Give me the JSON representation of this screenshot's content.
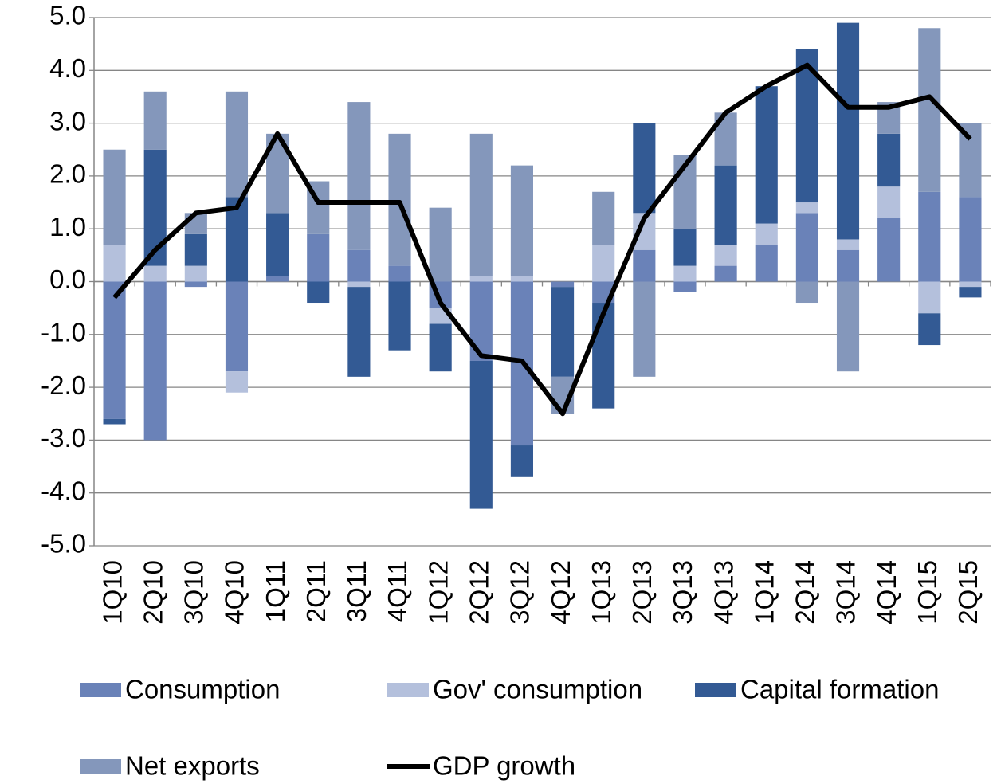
{
  "chart_data": {
    "type": "bar",
    "stacked": true,
    "categories": [
      "1Q10",
      "2Q10",
      "3Q10",
      "4Q10",
      "1Q11",
      "2Q11",
      "3Q11",
      "4Q11",
      "1Q12",
      "2Q12",
      "3Q12",
      "4Q12",
      "1Q13",
      "2Q13",
      "3Q13",
      "4Q13",
      "1Q14",
      "2Q14",
      "3Q14",
      "4Q14",
      "1Q15",
      "2Q15"
    ],
    "series": [
      {
        "name": "Consumption",
        "color": "#6a82b8",
        "values": [
          -2.6,
          -3.0,
          -0.1,
          -1.7,
          0.1,
          0.9,
          0.6,
          0.3,
          -0.5,
          -1.5,
          -3.1,
          -0.1,
          -0.4,
          0.6,
          -0.2,
          0.3,
          0.7,
          1.3,
          0.6,
          1.2,
          1.7,
          1.6
        ]
      },
      {
        "name": "Gov' consumption",
        "color": "#b4c0dc",
        "values": [
          0.7,
          0.3,
          0.3,
          -0.4,
          0,
          0,
          -0.1,
          0,
          -0.3,
          0.1,
          0.1,
          0,
          0.7,
          0.7,
          0.3,
          0.4,
          0.4,
          0.2,
          0.2,
          0.6,
          -0.6,
          -0.1
        ]
      },
      {
        "name": "Capital formation",
        "color": "#335a94",
        "values": [
          -0.1,
          2.2,
          0.6,
          1.6,
          1.2,
          -0.4,
          -1.7,
          -1.3,
          -0.9,
          -2.8,
          -0.6,
          -1.7,
          -2.0,
          1.7,
          0.7,
          1.5,
          2.6,
          2.9,
          4.1,
          1.0,
          -0.6,
          -0.2
        ]
      },
      {
        "name": "Net exports",
        "color": "#8497bb",
        "values": [
          1.8,
          1.1,
          0.4,
          2.0,
          1.5,
          1.0,
          2.8,
          2.5,
          1.4,
          2.7,
          2.1,
          -0.7,
          1.0,
          -1.8,
          1.4,
          1.0,
          0,
          -0.4,
          -1.7,
          0.6,
          3.1,
          1.4
        ]
      },
      {
        "name": "GDP growth",
        "type": "line",
        "color": "#000000",
        "values": [
          -0.3,
          0.6,
          1.3,
          1.4,
          2.8,
          1.5,
          1.5,
          1.5,
          -0.4,
          -1.4,
          -1.5,
          -2.5,
          -0.6,
          1.2,
          2.2,
          3.2,
          3.7,
          4.1,
          3.3,
          3.3,
          3.5,
          2.7
        ]
      }
    ],
    "ylim": [
      -5,
      5
    ],
    "yticks": [
      {
        "value": -5,
        "label": "-5.0"
      },
      {
        "value": -4,
        "label": "-4.0"
      },
      {
        "value": -3,
        "label": "-3.0"
      },
      {
        "value": -2,
        "label": "-2.0"
      },
      {
        "value": -1,
        "label": "-1.0"
      },
      {
        "value": 0,
        "label": "0.0"
      },
      {
        "value": 1,
        "label": "1.0"
      },
      {
        "value": 2,
        "label": "2.0"
      },
      {
        "value": 3,
        "label": "3.0"
      },
      {
        "value": 4,
        "label": "4.0"
      },
      {
        "value": 5,
        "label": "5.0"
      }
    ],
    "grid": true,
    "legend": "bottom"
  }
}
